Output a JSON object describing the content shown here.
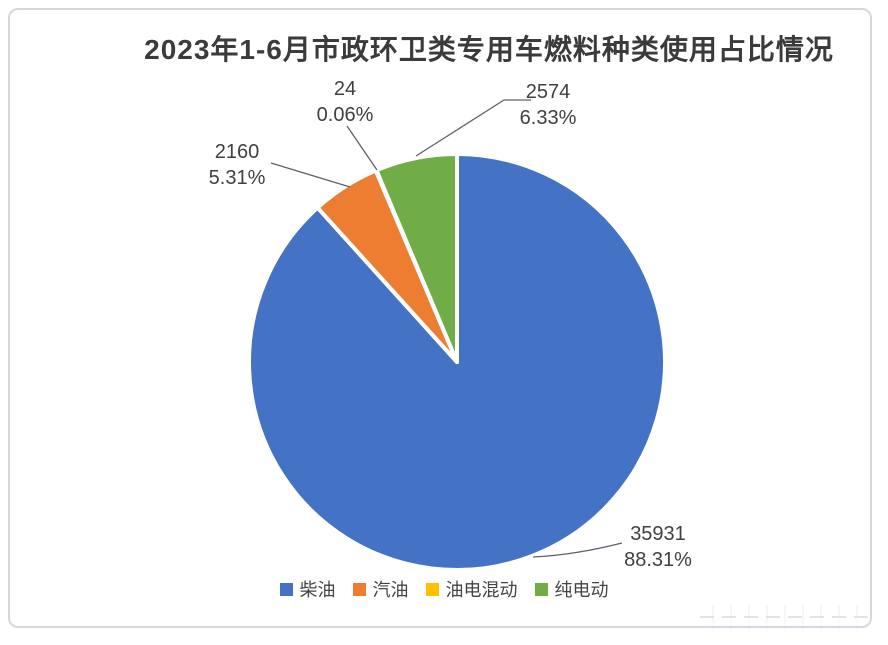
{
  "page": {
    "background": "#ffffff",
    "frame_border_color": "#d9d4de"
  },
  "chart_data": {
    "type": "pie",
    "title": "2023年1-6月市政环卫类专用车燃料种类使用占比情况",
    "legend_position": "bottom",
    "start_angle_deg": 0,
    "direction": "clockwise",
    "slice_gap_color": "#ffffff",
    "leader_line_color": "#625e70",
    "slices": [
      {
        "name": "柴油",
        "value": 35931,
        "value_label": "35931",
        "pct": 88.31,
        "pct_label": "88.31%",
        "color": "#4472C4"
      },
      {
        "name": "汽油",
        "value": 2160,
        "value_label": "2160",
        "pct": 5.31,
        "pct_label": "5.31%",
        "color": "#ED7D31"
      },
      {
        "name": "油电混动",
        "value": 24,
        "value_label": "24",
        "pct": 0.06,
        "pct_label": "0.06%",
        "color": "#FFC000"
      },
      {
        "name": "纯电动",
        "value": 2574,
        "value_label": "2574",
        "pct": 6.33,
        "pct_label": "6.33%",
        "color": "#70AD47"
      }
    ]
  }
}
